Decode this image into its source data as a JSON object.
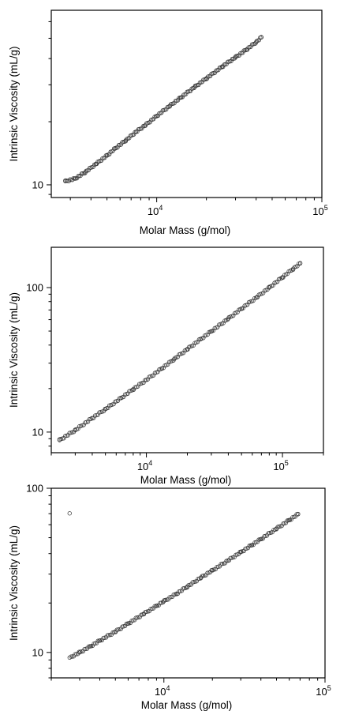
{
  "chart_data": [
    {
      "type": "scatter",
      "xlabel": "Molar Mass (g/mol)",
      "ylabel": "Intrinsic Viscosity (mL/g)",
      "xscale": "log",
      "yscale": "log",
      "xlim": [
        2300,
        100000
      ],
      "ylim": [
        8.7,
        68
      ],
      "x_ticks": [
        {
          "value": 10000,
          "label": "10",
          "exp": "4"
        },
        {
          "value": 100000,
          "label": "10",
          "exp": "5"
        }
      ],
      "y_ticks": [
        {
          "value": 10,
          "label": "10"
        }
      ],
      "series": [
        {
          "points": [
            [
              2800,
              10.4
            ],
            [
              3200,
              10.7
            ],
            [
              3700,
              11.5
            ],
            [
              4300,
              12.6
            ],
            [
              5000,
              13.8
            ],
            [
              5600,
              14.9
            ],
            [
              6500,
              16.3
            ],
            [
              7500,
              17.9
            ],
            [
              8500,
              19.2
            ],
            [
              10000,
              21.3
            ],
            [
              12000,
              23.8
            ],
            [
              14000,
              26.1
            ],
            [
              17000,
              29.3
            ],
            [
              20000,
              32.2
            ],
            [
              25000,
              36.7
            ],
            [
              30000,
              40.6
            ],
            [
              35000,
              44.2
            ],
            [
              40000,
              47.9
            ],
            [
              43000,
              50.5
            ]
          ]
        }
      ]
    },
    {
      "type": "scatter",
      "xlabel": "Molar Mass (g/mol)",
      "ylabel": "Intrinsic Viscosity (mL/g)",
      "xscale": "log",
      "yscale": "log",
      "xlim": [
        2000,
        200000
      ],
      "ylim": [
        7.2,
        190
      ],
      "x_ticks": [
        {
          "value": 10000,
          "label": "10",
          "exp": "4"
        },
        {
          "value": 100000,
          "label": "10",
          "exp": "5"
        }
      ],
      "y_ticks": [
        {
          "value": 10,
          "label": "10"
        },
        {
          "value": 100,
          "label": "100"
        }
      ],
      "series": [
        {
          "points": [
            [
              2300,
              8.8
            ],
            [
              3000,
              10.3
            ],
            [
              4000,
              12.5
            ],
            [
              5000,
              14.4
            ],
            [
              6500,
              17.2
            ],
            [
              8000,
              19.8
            ],
            [
              10000,
              23.0
            ],
            [
              13000,
              27.6
            ],
            [
              16000,
              32.0
            ],
            [
              20000,
              37.5
            ],
            [
              25000,
              43.9
            ],
            [
              30000,
              49.8
            ],
            [
              40000,
              61.0
            ],
            [
              50000,
              71.5
            ],
            [
              65000,
              86.0
            ],
            [
              80000,
              100.0
            ],
            [
              100000,
              118.0
            ],
            [
              120000,
              135.0
            ],
            [
              135000,
              147.0
            ]
          ]
        }
      ]
    },
    {
      "type": "scatter",
      "xlabel": "Molar Mass (g/mol)",
      "ylabel": "Intrinsic Viscosity (mL/g)",
      "xscale": "log",
      "yscale": "log",
      "xlim": [
        2000,
        100000
      ],
      "ylim": [
        7.0,
        100
      ],
      "x_ticks": [
        {
          "value": 10000,
          "label": "10",
          "exp": "4"
        },
        {
          "value": 100000,
          "label": "10",
          "exp": "5"
        }
      ],
      "y_ticks": [
        {
          "value": 10,
          "label": "10"
        },
        {
          "value": 100,
          "label": "100"
        }
      ],
      "series": [
        {
          "points": [
            [
              2600,
              9.3
            ],
            [
              3000,
              10.0
            ],
            [
              3500,
              10.9
            ],
            [
              4000,
              11.8
            ],
            [
              5000,
              13.4
            ],
            [
              6000,
              15.0
            ],
            [
              7500,
              17.2
            ],
            [
              9000,
              19.2
            ],
            [
              10000,
              20.5
            ],
            [
              12000,
              22.8
            ],
            [
              14000,
              25.2
            ],
            [
              17000,
              28.6
            ],
            [
              20000,
              31.6
            ],
            [
              25000,
              36.3
            ],
            [
              30000,
              40.8
            ],
            [
              35000,
              45.0
            ],
            [
              40000,
              49.0
            ],
            [
              50000,
              56.8
            ],
            [
              60000,
              64.0
            ],
            [
              68000,
              69.5
            ]
          ]
        }
      ]
    }
  ]
}
